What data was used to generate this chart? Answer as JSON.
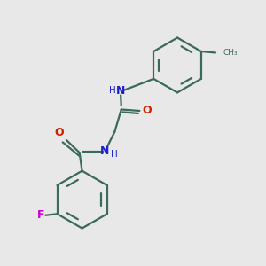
{
  "background_color": "#e8e8e8",
  "bond_color": "#3a6b5a",
  "nitrogen_color": "#2222cc",
  "oxygen_color": "#cc2200",
  "fluorine_color": "#cc00cc",
  "figsize": [
    3.0,
    3.0
  ],
  "dpi": 100,
  "xlim": [
    0,
    10
  ],
  "ylim": [
    0,
    10
  ]
}
